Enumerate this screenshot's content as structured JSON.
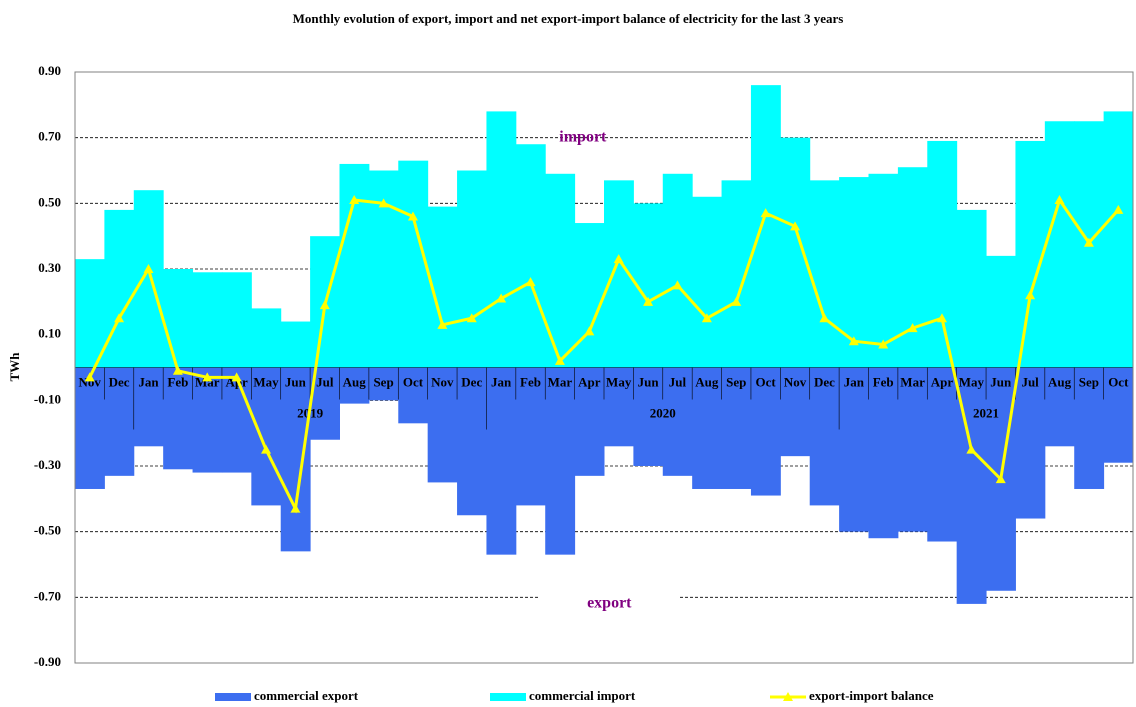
{
  "chart_data": {
    "type": "bar-line",
    "title": "Monthly evolution of export, import and net export-import  balance of electricity for the last 3 years",
    "y_label": "TWh",
    "annotations": [
      {
        "text": "import",
        "value": 0.7,
        "color": "#800080"
      },
      {
        "text": "export",
        "value": -0.72,
        "color": "#800080"
      }
    ],
    "categories": [
      "Nov",
      "Dec",
      "Jan",
      "Feb",
      "Mar",
      "Apr",
      "May",
      "Jun",
      "Jul",
      "Aug",
      "Sep",
      "Oct",
      "Nov",
      "Dec",
      "Jan",
      "Feb",
      "Mar",
      "Apr",
      "May",
      "Jun",
      "Jul",
      "Aug",
      "Sep",
      "Oct",
      "Nov",
      "Dec",
      "Jan",
      "Feb",
      "Mar",
      "Apr",
      "May",
      "Jun",
      "Jul",
      "Aug",
      "Sep",
      "Oct"
    ],
    "years": [
      null,
      null,
      "2019",
      "2019",
      "2019",
      "2019",
      "2019",
      "2019",
      "2019",
      "2019",
      "2019",
      "2019",
      "2019",
      "2019",
      "2020",
      "2020",
      "2020",
      "2020",
      "2020",
      "2020",
      "2020",
      "2020",
      "2020",
      "2020",
      "2020",
      "2020",
      "2021",
      "2021",
      "2021",
      "2021",
      "2021",
      "2021",
      "2021",
      "2021",
      "2021",
      "2021"
    ],
    "series": [
      {
        "name": "commercial export",
        "type": "bar",
        "color": "#3c6ef0",
        "values": [
          -0.37,
          -0.33,
          -0.24,
          -0.31,
          -0.32,
          -0.32,
          -0.42,
          -0.56,
          -0.22,
          -0.11,
          -0.1,
          -0.17,
          -0.35,
          -0.45,
          -0.57,
          -0.42,
          -0.57,
          -0.33,
          -0.24,
          -0.3,
          -0.33,
          -0.37,
          -0.37,
          -0.39,
          -0.27,
          -0.42,
          -0.5,
          -0.52,
          -0.5,
          -0.53,
          -0.72,
          -0.68,
          -0.46,
          -0.24,
          -0.37,
          -0.29
        ]
      },
      {
        "name": "commercial import",
        "type": "bar",
        "color": "#00ffff",
        "values": [
          0.33,
          0.48,
          0.54,
          0.3,
          0.29,
          0.29,
          0.18,
          0.14,
          0.4,
          0.62,
          0.6,
          0.63,
          0.49,
          0.6,
          0.78,
          0.68,
          0.59,
          0.44,
          0.57,
          0.5,
          0.59,
          0.52,
          0.57,
          0.86,
          0.7,
          0.57,
          0.58,
          0.59,
          0.61,
          0.69,
          0.48,
          0.34,
          0.69,
          0.75,
          0.75,
          0.78
        ]
      },
      {
        "name": "export-import balance",
        "type": "line",
        "color": "#ffff00",
        "values": [
          -0.03,
          0.15,
          0.3,
          -0.01,
          -0.03,
          -0.03,
          -0.25,
          -0.43,
          0.19,
          0.51,
          0.5,
          0.46,
          0.13,
          0.15,
          0.21,
          0.26,
          0.02,
          0.11,
          0.33,
          0.2,
          0.25,
          0.15,
          0.2,
          0.47,
          0.43,
          0.15,
          0.08,
          0.07,
          0.12,
          0.15,
          -0.25,
          -0.34,
          0.22,
          0.51,
          0.38,
          0.48
        ]
      }
    ],
    "ylim": [
      -0.9,
      0.9
    ],
    "yticks": [
      {
        "value": -0.9,
        "label": "-0.90"
      },
      {
        "value": -0.7,
        "label": "-0.70"
      },
      {
        "value": -0.5,
        "label": "-0.50"
      },
      {
        "value": -0.3,
        "label": "-0.30"
      },
      {
        "value": -0.1,
        "label": "-0.10"
      },
      {
        "value": 0.1,
        "label": "0.10"
      },
      {
        "value": 0.3,
        "label": "0.30"
      },
      {
        "value": 0.5,
        "label": "0.50"
      },
      {
        "value": 0.7,
        "label": "0.70"
      },
      {
        "value": 0.9,
        "label": "0.90"
      }
    ],
    "grid": true,
    "legend": "bottom"
  }
}
